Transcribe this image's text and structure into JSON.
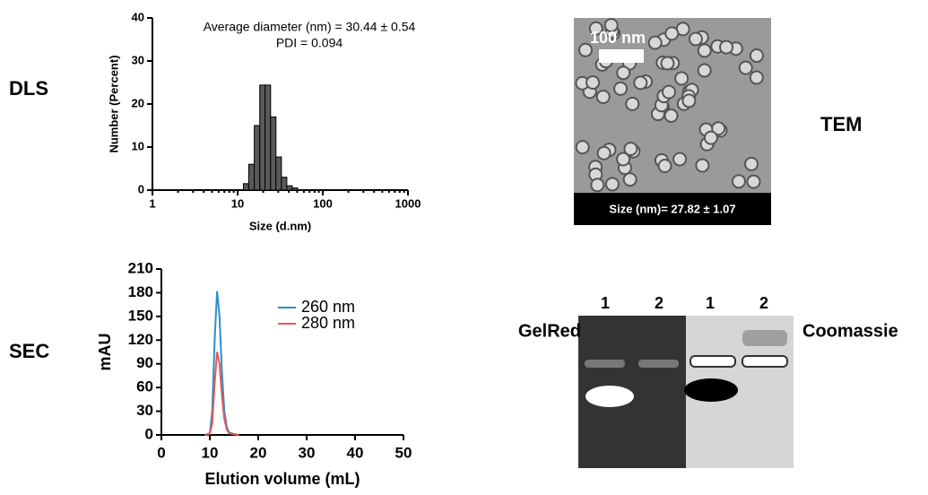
{
  "chart_data": [
    {
      "type": "histogram",
      "annotations": [
        "Average diameter (nm) = 30.44 ± 0.54",
        "PDI = 0.094"
      ],
      "xlabel": "Size (d.nm)",
      "ylabel": "Number (Percent)",
      "log_x": true,
      "bins": [
        11.7,
        13.5,
        15.7,
        18.2,
        21.0,
        24.4,
        28.2,
        32.7,
        37.8,
        43.8,
        50.7
      ],
      "values": [
        1.5,
        6,
        15,
        24.4,
        24.4,
        17,
        7.7,
        3,
        1,
        0.5
      ],
      "color": "#595959",
      "xlim": [
        1,
        1000
      ],
      "xticks": [
        1,
        10,
        100,
        1000
      ],
      "ylim": [
        0,
        40
      ],
      "yticks": [
        0,
        10,
        20,
        30,
        40
      ]
    },
    {
      "type": "line",
      "xlabel": "Elution volume (mL)",
      "ylabel": "mAU",
      "x": [
        9,
        10,
        10.5,
        11,
        11.5,
        12,
        12.5,
        13,
        13.5,
        14,
        15,
        16
      ],
      "series": [
        {
          "name": "260 nm",
          "color": "#2e8fc9",
          "values": [
            0,
            2,
            30,
            120,
            182,
            150,
            80,
            30,
            10,
            3,
            1,
            0
          ]
        },
        {
          "name": "280 nm",
          "color": "#e05a5a",
          "values": [
            0,
            1,
            15,
            65,
            105,
            90,
            50,
            20,
            7,
            2,
            1,
            0
          ]
        }
      ],
      "xlim": [
        0,
        50
      ],
      "xticks": [
        0,
        10,
        20,
        30,
        40,
        50
      ],
      "ylim": [
        0,
        210
      ],
      "yticks": [
        0,
        30,
        60,
        90,
        120,
        150,
        180,
        210
      ]
    }
  ],
  "panels": {
    "dls": "DLS",
    "sec": "SEC",
    "tem": "TEM"
  },
  "tem": {
    "scale_bar": "100 nm",
    "size": "Size (nm)= 27.82 ± 1.07"
  },
  "gel": {
    "left": "GelRed",
    "right": "Coomassie",
    "lanes": [
      "1",
      "2",
      "1",
      "2"
    ]
  }
}
